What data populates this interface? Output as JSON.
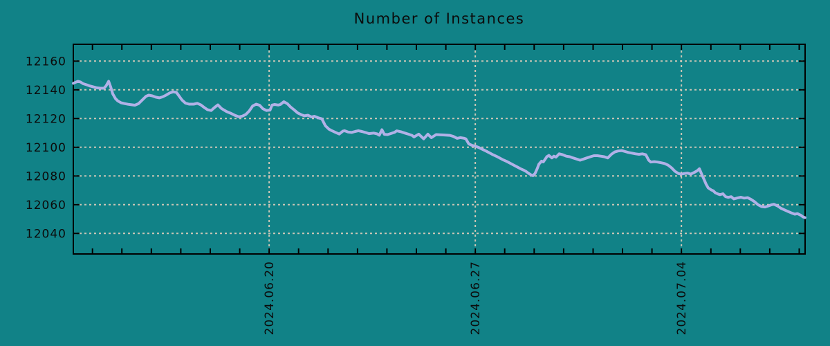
{
  "chart_data": {
    "type": "line",
    "title": "Number of Instances",
    "legend": {
      "show": false
    },
    "grid": {
      "show": true,
      "style": "dashed"
    },
    "x_axis": {
      "unit": "days since 2024-06-13 00:00",
      "range": [
        0.35,
        25.2
      ],
      "minor_tick_interval_days": 1,
      "major_ticks": [
        {
          "t": 7,
          "label": "2024.06.20"
        },
        {
          "t": 14,
          "label": "2024.06.27"
        },
        {
          "t": 21,
          "label": "2024.07.04"
        }
      ]
    },
    "y_axis": {
      "range": [
        12025.7,
        12171.7
      ],
      "ticks": [
        12040,
        12060,
        12080,
        12100,
        12120,
        12140,
        12160
      ]
    },
    "series": [
      {
        "name": "instances",
        "color": "#b1b1e7",
        "points": [
          [
            0.35,
            12144.5
          ],
          [
            0.42,
            12145.2
          ],
          [
            0.51,
            12145.9
          ],
          [
            0.6,
            12145.4
          ],
          [
            0.68,
            12144.3
          ],
          [
            0.8,
            12143.5
          ],
          [
            0.91,
            12142.7
          ],
          [
            1.03,
            12142.0
          ],
          [
            1.15,
            12141.4
          ],
          [
            1.27,
            12141.1
          ],
          [
            1.39,
            12141.1
          ],
          [
            1.46,
            12142.7
          ],
          [
            1.55,
            12145.9
          ],
          [
            1.62,
            12141.9
          ],
          [
            1.69,
            12137.1
          ],
          [
            1.78,
            12133.9
          ],
          [
            1.86,
            12132.3
          ],
          [
            1.97,
            12131.0
          ],
          [
            2.09,
            12130.4
          ],
          [
            2.21,
            12129.9
          ],
          [
            2.33,
            12129.6
          ],
          [
            2.44,
            12129.3
          ],
          [
            2.56,
            12130.3
          ],
          [
            2.72,
            12133.5
          ],
          [
            2.82,
            12135.5
          ],
          [
            2.91,
            12136.3
          ],
          [
            3.03,
            12135.8
          ],
          [
            3.15,
            12134.9
          ],
          [
            3.27,
            12134.4
          ],
          [
            3.38,
            12135.1
          ],
          [
            3.5,
            12136.3
          ],
          [
            3.62,
            12137.8
          ],
          [
            3.74,
            12138.6
          ],
          [
            3.85,
            12138.2
          ],
          [
            3.92,
            12136.3
          ],
          [
            4.04,
            12132.9
          ],
          [
            4.16,
            12130.7
          ],
          [
            4.28,
            12130.0
          ],
          [
            4.44,
            12130.0
          ],
          [
            4.56,
            12130.6
          ],
          [
            4.68,
            12129.5
          ],
          [
            4.79,
            12127.8
          ],
          [
            4.91,
            12126.1
          ],
          [
            5.03,
            12125.6
          ],
          [
            5.15,
            12127.8
          ],
          [
            5.26,
            12129.5
          ],
          [
            5.38,
            12127.0
          ],
          [
            5.55,
            12124.9
          ],
          [
            5.69,
            12123.7
          ],
          [
            5.85,
            12122.1
          ],
          [
            5.97,
            12121.2
          ],
          [
            6.09,
            12121.7
          ],
          [
            6.21,
            12122.9
          ],
          [
            6.32,
            12125.2
          ],
          [
            6.44,
            12128.7
          ],
          [
            6.56,
            12130.0
          ],
          [
            6.68,
            12129.2
          ],
          [
            6.79,
            12126.8
          ],
          [
            6.91,
            12125.6
          ],
          [
            7.03,
            12125.9
          ],
          [
            7.1,
            12129.4
          ],
          [
            7.19,
            12129.8
          ],
          [
            7.31,
            12129.4
          ],
          [
            7.38,
            12129.8
          ],
          [
            7.5,
            12131.7
          ],
          [
            7.62,
            12130.3
          ],
          [
            7.73,
            12128.0
          ],
          [
            7.85,
            12126.0
          ],
          [
            7.97,
            12123.9
          ],
          [
            8.09,
            12122.7
          ],
          [
            8.2,
            12121.9
          ],
          [
            8.32,
            12122.3
          ],
          [
            8.44,
            12121.1
          ],
          [
            8.53,
            12121.6
          ],
          [
            8.67,
            12120.5
          ],
          [
            8.79,
            12119.8
          ],
          [
            8.91,
            12115.0
          ],
          [
            9.03,
            12112.6
          ],
          [
            9.14,
            12111.4
          ],
          [
            9.26,
            12110.3
          ],
          [
            9.38,
            12109.2
          ],
          [
            9.5,
            12111.2
          ],
          [
            9.56,
            12111.5
          ],
          [
            9.68,
            12110.6
          ],
          [
            9.8,
            12110.3
          ],
          [
            9.92,
            12111.0
          ],
          [
            10.03,
            12111.5
          ],
          [
            10.15,
            12111.0
          ],
          [
            10.27,
            12110.3
          ],
          [
            10.39,
            12109.5
          ],
          [
            10.55,
            12109.9
          ],
          [
            10.67,
            12109.3
          ],
          [
            10.74,
            12108.4
          ],
          [
            10.83,
            12112.2
          ],
          [
            10.91,
            12109.0
          ],
          [
            11.02,
            12108.8
          ],
          [
            11.14,
            12109.6
          ],
          [
            11.26,
            12110.4
          ],
          [
            11.33,
            12111.4
          ],
          [
            11.49,
            12110.7
          ],
          [
            11.61,
            12109.9
          ],
          [
            11.73,
            12109.1
          ],
          [
            11.85,
            12108.3
          ],
          [
            11.92,
            12107.2
          ],
          [
            12.01,
            12108.3
          ],
          [
            12.08,
            12109.1
          ],
          [
            12.25,
            12105.9
          ],
          [
            12.39,
            12109.1
          ],
          [
            12.51,
            12106.7
          ],
          [
            12.67,
            12108.8
          ],
          [
            12.91,
            12108.6
          ],
          [
            13.14,
            12108.3
          ],
          [
            13.26,
            12107.5
          ],
          [
            13.38,
            12106.2
          ],
          [
            13.49,
            12106.7
          ],
          [
            13.61,
            12106.3
          ],
          [
            13.68,
            12105.9
          ],
          [
            13.78,
            12102.3
          ],
          [
            13.89,
            12101.3
          ],
          [
            14.01,
            12100.7
          ],
          [
            14.13,
            12099.7
          ],
          [
            14.25,
            12098.5
          ],
          [
            14.36,
            12097.4
          ],
          [
            14.48,
            12096.1
          ],
          [
            14.6,
            12094.8
          ],
          [
            14.72,
            12093.7
          ],
          [
            14.83,
            12092.5
          ],
          [
            14.95,
            12091.2
          ],
          [
            15.07,
            12090.1
          ],
          [
            15.19,
            12088.8
          ],
          [
            15.3,
            12087.6
          ],
          [
            15.42,
            12086.3
          ],
          [
            15.54,
            12085.0
          ],
          [
            15.66,
            12083.9
          ],
          [
            15.73,
            12083.1
          ],
          [
            15.8,
            12082.0
          ],
          [
            15.89,
            12080.8
          ],
          [
            15.96,
            12080.2
          ],
          [
            16.03,
            12081.8
          ],
          [
            16.1,
            12085.0
          ],
          [
            16.16,
            12088.2
          ],
          [
            16.25,
            12090.3
          ],
          [
            16.31,
            12089.8
          ],
          [
            16.38,
            12091.9
          ],
          [
            16.43,
            12093.4
          ],
          [
            16.5,
            12094.3
          ],
          [
            16.6,
            12092.6
          ],
          [
            16.67,
            12093.8
          ],
          [
            16.74,
            12093.1
          ],
          [
            16.85,
            12095.4
          ],
          [
            16.97,
            12094.8
          ],
          [
            17.09,
            12093.8
          ],
          [
            17.21,
            12093.4
          ],
          [
            17.32,
            12092.6
          ],
          [
            17.44,
            12091.8
          ],
          [
            17.56,
            12091.0
          ],
          [
            17.68,
            12091.8
          ],
          [
            17.79,
            12092.6
          ],
          [
            17.91,
            12093.4
          ],
          [
            18.03,
            12094.1
          ],
          [
            18.15,
            12094.1
          ],
          [
            18.26,
            12093.8
          ],
          [
            18.38,
            12093.4
          ],
          [
            18.5,
            12092.6
          ],
          [
            18.62,
            12095.1
          ],
          [
            18.73,
            12096.7
          ],
          [
            18.85,
            12097.4
          ],
          [
            18.97,
            12097.7
          ],
          [
            19.09,
            12097.0
          ],
          [
            19.2,
            12096.4
          ],
          [
            19.32,
            12095.9
          ],
          [
            19.44,
            12095.4
          ],
          [
            19.56,
            12095.1
          ],
          [
            19.67,
            12095.4
          ],
          [
            19.79,
            12094.8
          ],
          [
            19.89,
            12091.0
          ],
          [
            19.96,
            12089.7
          ],
          [
            20.08,
            12090.0
          ],
          [
            20.19,
            12089.7
          ],
          [
            20.31,
            12089.2
          ],
          [
            20.43,
            12088.7
          ],
          [
            20.55,
            12087.5
          ],
          [
            20.66,
            12085.8
          ],
          [
            20.78,
            12083.3
          ],
          [
            20.9,
            12081.7
          ],
          [
            21.0,
            12081.3
          ],
          [
            21.09,
            12081.7
          ],
          [
            21.21,
            12082.0
          ],
          [
            21.32,
            12081.3
          ],
          [
            21.44,
            12082.5
          ],
          [
            21.54,
            12083.7
          ],
          [
            21.61,
            12085.0
          ],
          [
            21.68,
            12081.7
          ],
          [
            21.77,
            12077.5
          ],
          [
            21.84,
            12074.2
          ],
          [
            21.91,
            12071.7
          ],
          [
            22.01,
            12070.3
          ],
          [
            22.08,
            12069.7
          ],
          [
            22.15,
            12068.3
          ],
          [
            22.24,
            12067.5
          ],
          [
            22.31,
            12067.0
          ],
          [
            22.41,
            12067.6
          ],
          [
            22.5,
            12065.6
          ],
          [
            22.59,
            12065.1
          ],
          [
            22.69,
            12065.6
          ],
          [
            22.78,
            12064.0
          ],
          [
            22.9,
            12064.7
          ],
          [
            23.02,
            12065.2
          ],
          [
            23.13,
            12064.6
          ],
          [
            23.25,
            12064.9
          ],
          [
            23.37,
            12063.6
          ],
          [
            23.49,
            12062.0
          ],
          [
            23.6,
            12060.0
          ],
          [
            23.72,
            12058.7
          ],
          [
            23.84,
            12058.4
          ],
          [
            23.96,
            12059.2
          ],
          [
            24.07,
            12060.0
          ],
          [
            24.14,
            12060.3
          ],
          [
            24.26,
            12059.2
          ],
          [
            24.38,
            12057.5
          ],
          [
            24.5,
            12056.4
          ],
          [
            24.61,
            12055.4
          ],
          [
            24.73,
            12054.3
          ],
          [
            24.85,
            12053.4
          ],
          [
            24.94,
            12053.8
          ],
          [
            25.06,
            12052.6
          ],
          [
            25.13,
            12051.5
          ],
          [
            25.2,
            12051.0
          ]
        ]
      }
    ]
  },
  "style": {
    "background": "#118287",
    "line_color": "#b1b1e7",
    "grid_color": "#ccc6b6",
    "axis_color": "#000000",
    "text_color": "#0b0b0b"
  }
}
